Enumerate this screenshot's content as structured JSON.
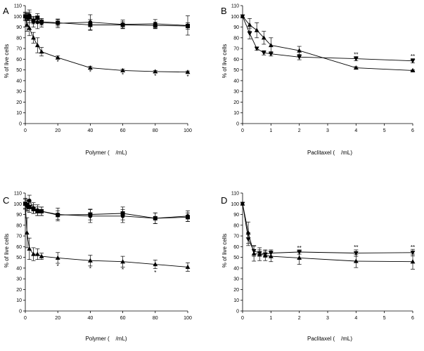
{
  "chart_data": [
    {
      "panel": "A",
      "type": "line",
      "xlabel": "Polymer (    /mL)",
      "ylabel": "% of live cells",
      "xlim": [
        0,
        100
      ],
      "ylim": [
        0,
        110
      ],
      "xticks": [
        0,
        20,
        40,
        60,
        80,
        100
      ],
      "yticks": [
        0,
        10,
        20,
        30,
        40,
        50,
        60,
        70,
        80,
        90,
        100,
        110
      ],
      "series": [
        {
          "name": "circle",
          "marker": "circle",
          "x": [
            0,
            1,
            2.5,
            5,
            7.5,
            10,
            20,
            40,
            60,
            80,
            100
          ],
          "y": [
            100,
            100,
            101,
            95,
            94.5,
            94,
            93.5,
            94.5,
            92.5,
            93,
            91.5
          ],
          "err": [
            3,
            3,
            5,
            5,
            6,
            4,
            4,
            7,
            4,
            4,
            9
          ]
        },
        {
          "name": "square",
          "marker": "square",
          "x": [
            0,
            1,
            2.5,
            5,
            7.5,
            10,
            20,
            40,
            60,
            80,
            100
          ],
          "y": [
            100,
            99.5,
            99,
            96,
            98.5,
            95,
            94,
            92,
            92,
            91.5,
            91
          ],
          "err": [
            4,
            3,
            5,
            3,
            4,
            3,
            3,
            5,
            3,
            3,
            3
          ]
        },
        {
          "name": "triangle",
          "marker": "triangle",
          "x": [
            0,
            1,
            2.5,
            5,
            7.5,
            10,
            20,
            40,
            60,
            80,
            100
          ],
          "y": [
            100,
            92,
            89,
            80,
            73,
            67,
            61.5,
            52,
            49.5,
            48.5,
            48
          ],
          "err": [
            3,
            6,
            7,
            5,
            7,
            4,
            1.5,
            1.5,
            1.2,
            1,
            1
          ]
        }
      ],
      "annotations": [
        {
          "x": 20,
          "y": 57.5,
          "text": "*"
        },
        {
          "x": 40,
          "y": 48,
          "text": "*"
        },
        {
          "x": 60,
          "y": 45.5,
          "text": "*"
        },
        {
          "x": 80,
          "y": 44.5,
          "text": "*"
        },
        {
          "x": 100,
          "y": 44,
          "text": "*"
        }
      ]
    },
    {
      "panel": "B",
      "type": "line",
      "xlabel": "Paclitaxel (    /mL)",
      "ylabel": "% of live cells",
      "xlim": [
        0,
        6
      ],
      "ylim": [
        0,
        110
      ],
      "xticks": [
        0,
        1,
        2,
        3,
        4,
        5,
        6
      ],
      "yticks": [
        0,
        10,
        20,
        30,
        40,
        50,
        60,
        70,
        80,
        90,
        100,
        110
      ],
      "series": [
        {
          "name": "triangle-down",
          "marker": "triangle-down",
          "x": [
            0,
            0.25,
            0.5,
            0.75,
            1,
            2,
            4,
            6
          ],
          "y": [
            100,
            84,
            70,
            66,
            65,
            62,
            60.5,
            58.5
          ],
          "err": [
            0,
            5,
            1.5,
            2,
            2,
            2.5,
            2,
            2
          ]
        },
        {
          "name": "triangle-up",
          "marker": "triangle-up",
          "x": [
            0,
            0.25,
            0.5,
            0.75,
            1,
            2,
            4,
            6
          ],
          "y": [
            100,
            92,
            87,
            80,
            73,
            68,
            52,
            49.5
          ],
          "err": [
            0,
            6,
            7,
            6,
            7,
            4,
            1,
            0.5
          ]
        }
      ],
      "annotations": [
        {
          "x": 4,
          "y": 64.5,
          "text": "**"
        },
        {
          "x": 6,
          "y": 63,
          "text": "**"
        }
      ]
    },
    {
      "panel": "C",
      "type": "line",
      "xlabel": "Polymer (    /mL)",
      "ylabel": "% of live cells",
      "xlim": [
        0,
        100
      ],
      "ylim": [
        0,
        110
      ],
      "xticks": [
        0,
        20,
        40,
        60,
        80,
        100
      ],
      "yticks": [
        0,
        10,
        20,
        30,
        40,
        50,
        60,
        70,
        80,
        90,
        100,
        110
      ],
      "series": [
        {
          "name": "circle",
          "marker": "circle",
          "x": [
            0,
            1,
            2.5,
            5,
            7.5,
            10,
            20,
            40,
            60,
            80,
            100
          ],
          "y": [
            100,
            98,
            103,
            96,
            94,
            93,
            90,
            88.5,
            88.5,
            86.5,
            88.5
          ],
          "err": [
            4,
            5,
            5,
            5,
            5,
            4,
            6,
            6,
            6,
            5,
            5
          ]
        },
        {
          "name": "square",
          "marker": "square",
          "x": [
            0,
            1,
            2.5,
            5,
            7.5,
            10,
            20,
            40,
            60,
            80,
            100
          ],
          "y": [
            100,
            99,
            97,
            95,
            93,
            93,
            89.5,
            90,
            91,
            86.5,
            87.5
          ],
          "err": [
            5,
            5,
            5,
            4,
            4,
            4,
            4,
            5,
            6,
            5,
            4
          ]
        },
        {
          "name": "triangle",
          "marker": "triangle",
          "x": [
            0,
            1,
            2.5,
            5,
            7.5,
            10,
            20,
            40,
            60,
            80,
            100
          ],
          "y": [
            100,
            73,
            58,
            53,
            53,
            51,
            49.5,
            47,
            46,
            43.5,
            41
          ],
          "err": [
            5,
            14,
            10,
            6,
            5,
            3,
            5,
            5,
            5,
            4,
            4
          ]
        }
      ],
      "annotations": [
        {
          "x": 20,
          "y": 42,
          "text": "*"
        },
        {
          "x": 40,
          "y": 39.5,
          "text": "*"
        },
        {
          "x": 60,
          "y": 38.5,
          "text": "*"
        },
        {
          "x": 80,
          "y": 36,
          "text": "*"
        }
      ]
    },
    {
      "panel": "D",
      "type": "line",
      "xlabel": "Paclitaxel (    /mL)",
      "ylabel": "% of live cells",
      "xlim": [
        0,
        6
      ],
      "ylim": [
        0,
        110
      ],
      "xticks": [
        0,
        1,
        2,
        3,
        4,
        5,
        6
      ],
      "yticks": [
        0,
        10,
        20,
        30,
        40,
        50,
        60,
        70,
        80,
        90,
        100,
        110
      ],
      "series": [
        {
          "name": "triangle-down",
          "marker": "triangle-down",
          "x": [
            0,
            0.2,
            0.4,
            0.6,
            0.8,
            1,
            2,
            4,
            6
          ],
          "y": [
            100,
            67,
            56,
            54,
            53,
            54,
            55,
            54,
            54.5
          ],
          "err": [
            0,
            6,
            5,
            3,
            3,
            3,
            2,
            3,
            3
          ]
        },
        {
          "name": "triangle-up",
          "marker": "triangle-up",
          "x": [
            0,
            0.2,
            0.4,
            0.6,
            0.8,
            1,
            2,
            4,
            6
          ],
          "y": [
            100,
            73,
            53.5,
            53,
            52,
            51,
            49.5,
            46.5,
            46
          ],
          "err": [
            0,
            10,
            7,
            6,
            5,
            5,
            6,
            6,
            7
          ]
        }
      ],
      "annotations": [
        {
          "x": 2,
          "y": 59,
          "text": "**"
        },
        {
          "x": 4,
          "y": 59.5,
          "text": "**"
        },
        {
          "x": 6,
          "y": 59.5,
          "text": "**"
        }
      ]
    }
  ]
}
